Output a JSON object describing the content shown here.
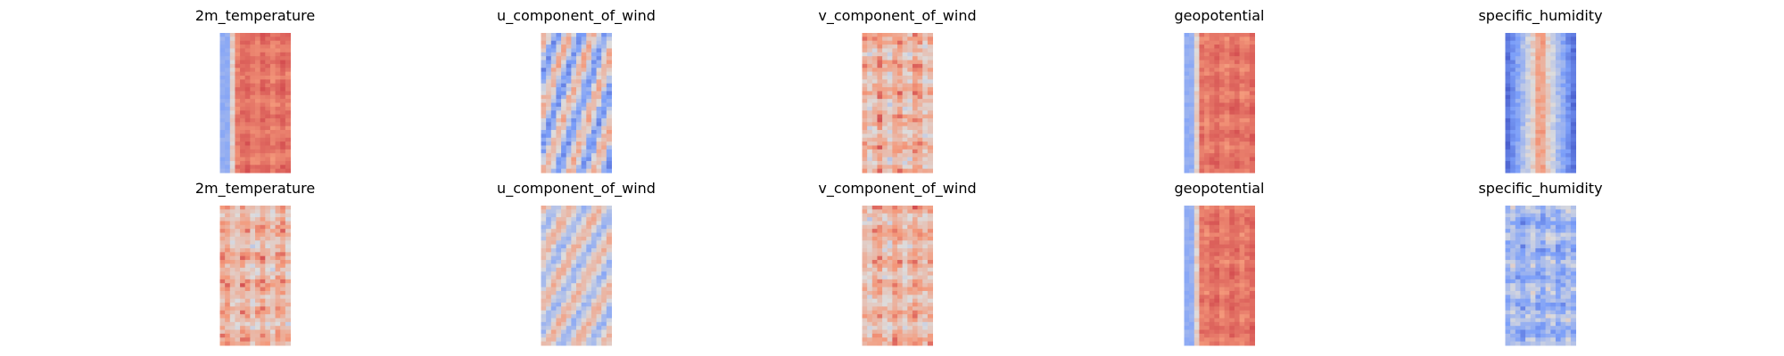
{
  "chart_data": [
    {
      "type": "heatmap",
      "title": "2m_temperature",
      "row": 0,
      "col": 0,
      "colormap": "coolwarm",
      "pattern": "warm-center-band"
    },
    {
      "type": "heatmap",
      "title": "u_component_of_wind",
      "row": 0,
      "col": 1,
      "colormap": "coolwarm",
      "pattern": "mixed-streaks"
    },
    {
      "type": "heatmap",
      "title": "v_component_of_wind",
      "row": 0,
      "col": 2,
      "colormap": "coolwarm",
      "pattern": "warm-noise"
    },
    {
      "type": "heatmap",
      "title": "geopotential",
      "row": 0,
      "col": 3,
      "colormap": "coolwarm",
      "pattern": "warm-center-band"
    },
    {
      "type": "heatmap",
      "title": "specific_humidity",
      "row": 0,
      "col": 4,
      "colormap": "coolwarm",
      "pattern": "cold-edges-warm-center"
    },
    {
      "type": "heatmap",
      "title": "2m_temperature",
      "row": 1,
      "col": 0,
      "colormap": "coolwarm",
      "pattern": "warm-noise"
    },
    {
      "type": "heatmap",
      "title": "u_component_of_wind",
      "row": 1,
      "col": 1,
      "colormap": "coolwarm",
      "pattern": "neutral-streaks"
    },
    {
      "type": "heatmap",
      "title": "v_component_of_wind",
      "row": 1,
      "col": 2,
      "colormap": "coolwarm",
      "pattern": "warm-noise"
    },
    {
      "type": "heatmap",
      "title": "geopotential",
      "row": 1,
      "col": 3,
      "colormap": "coolwarm",
      "pattern": "warm-center-band"
    },
    {
      "type": "heatmap",
      "title": "specific_humidity",
      "row": 1,
      "col": 4,
      "colormap": "coolwarm",
      "pattern": "cool-noise"
    }
  ],
  "colors": {
    "cold": "#3b4cc0",
    "neutral": "#dddcdc",
    "warm": "#b40426"
  }
}
